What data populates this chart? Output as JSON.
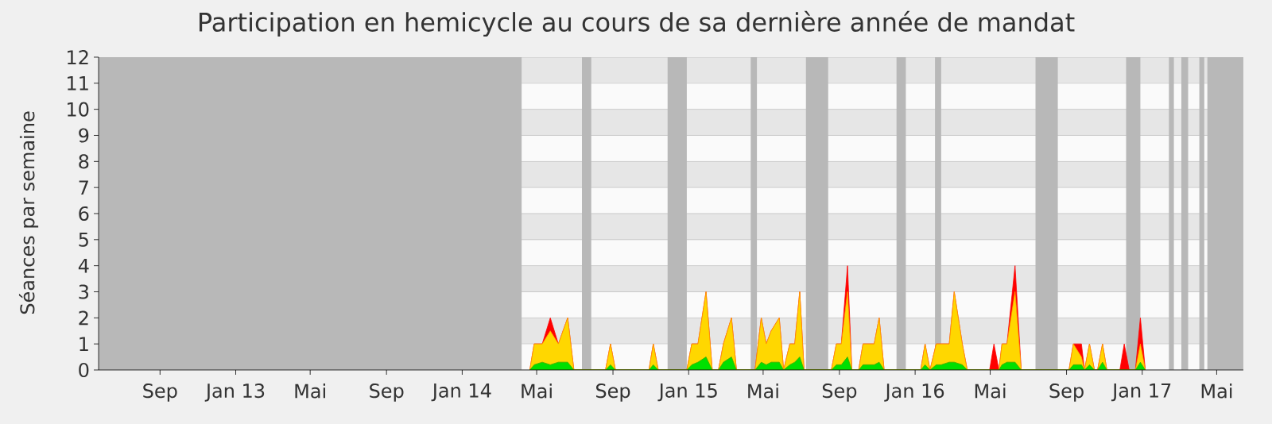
{
  "chart_data": {
    "type": "area",
    "title": "Participation en hemicycle au cours de sa dernière année de mandat",
    "ylabel": "Séances par semaine",
    "x": [
      "2014-04-20",
      "2014-04-27",
      "2014-05-10",
      "2014-05-23",
      "2014-06-05",
      "2014-06-20",
      "2014-06-30",
      "2014-08-20",
      "2014-08-28",
      "2014-09-05",
      "2014-10-29",
      "2014-11-05",
      "2014-11-13",
      "2014-12-29",
      "2015-01-06",
      "2015-01-16",
      "2015-01-29",
      "2015-02-08",
      "2015-02-18",
      "2015-02-26",
      "2015-03-11",
      "2015-03-19",
      "2015-04-18",
      "2015-04-28",
      "2015-05-06",
      "2015-05-14",
      "2015-05-27",
      "2015-06-03",
      "2015-06-13",
      "2015-06-21",
      "2015-06-29",
      "2015-07-06",
      "2015-08-19",
      "2015-08-27",
      "2015-09-04",
      "2015-09-14",
      "2015-09-21",
      "2015-10-02",
      "2015-10-09",
      "2015-10-20",
      "2015-10-27",
      "2015-11-04",
      "2015-11-12",
      "2016-01-10",
      "2016-01-17",
      "2016-01-25",
      "2016-02-04",
      "2016-02-12",
      "2016-02-25",
      "2016-03-04",
      "2016-03-17",
      "2016-03-25",
      "2016-04-30",
      "2016-05-07",
      "2016-05-15",
      "2016-05-20",
      "2016-05-28",
      "2016-06-10",
      "2016-06-20",
      "2016-09-05",
      "2016-09-12",
      "2016-09-25",
      "2016-09-30",
      "2016-10-08",
      "2016-10-16",
      "2016-10-21",
      "2016-10-29",
      "2016-11-05",
      "2016-11-26",
      "2016-12-03",
      "2016-12-11",
      "2016-12-21",
      "2016-12-29",
      "2017-01-06"
    ],
    "series": [
      {
        "color": "#ff0000",
        "values": [
          0,
          1,
          1,
          2,
          1,
          2,
          0,
          0,
          1,
          0,
          0,
          1,
          0,
          0,
          1,
          1,
          3,
          0,
          0,
          1,
          2,
          0,
          0,
          2,
          1,
          1.5,
          2,
          0,
          1,
          1,
          3,
          0,
          0,
          1,
          1,
          4,
          0,
          0,
          1,
          1,
          1,
          2,
          0,
          0,
          1,
          0,
          1,
          1,
          1,
          3,
          1,
          0,
          0,
          1,
          0,
          1,
          1,
          4,
          0,
          0,
          1,
          1,
          0,
          1,
          0,
          0,
          1,
          0,
          0,
          1,
          0,
          0,
          2,
          0
        ]
      },
      {
        "color": "#ffd700",
        "values": [
          0,
          1,
          1,
          1.5,
          1,
          2,
          0,
          0,
          1,
          0,
          0,
          1,
          0,
          0,
          1,
          1,
          3,
          0,
          0,
          1,
          2,
          0,
          0,
          2,
          1,
          1.5,
          2,
          0,
          1,
          1,
          3,
          0,
          0,
          1,
          1,
          3,
          0,
          0,
          1,
          1,
          1,
          2,
          0,
          0,
          1,
          0,
          1,
          1,
          1,
          3,
          1,
          0,
          0,
          0,
          0,
          1,
          1,
          3,
          0,
          0,
          1,
          0.5,
          0,
          1,
          0,
          0,
          1,
          0,
          0,
          0,
          0,
          0,
          1,
          0
        ]
      },
      {
        "color": "#00e000",
        "values": [
          0,
          0.2,
          0.3,
          0.2,
          0.3,
          0.3,
          0,
          0,
          0.2,
          0,
          0,
          0.2,
          0,
          0,
          0.2,
          0.3,
          0.5,
          0,
          0,
          0.3,
          0.5,
          0,
          0,
          0.3,
          0.2,
          0.3,
          0.3,
          0,
          0.2,
          0.3,
          0.5,
          0,
          0,
          0.2,
          0.2,
          0.5,
          0,
          0,
          0.2,
          0.2,
          0.2,
          0.3,
          0,
          0,
          0.2,
          0,
          0.2,
          0.2,
          0.3,
          0.3,
          0.2,
          0,
          0,
          0,
          0,
          0.2,
          0.3,
          0.3,
          0,
          0,
          0.2,
          0.2,
          0,
          0.2,
          0,
          0,
          0.3,
          0,
          0,
          0,
          0,
          0,
          0.3,
          0
        ]
      }
    ],
    "xlim": [
      "2012-05-25",
      "2017-06-13"
    ],
    "ylim": [
      0,
      12
    ],
    "xticks": [
      {
        "value": "2012-09-01",
        "label": "Sep"
      },
      {
        "value": "2013-01-01",
        "label": "Jan 13"
      },
      {
        "value": "2013-05-01",
        "label": "Mai"
      },
      {
        "value": "2013-09-01",
        "label": "Sep"
      },
      {
        "value": "2014-01-01",
        "label": "Jan 14"
      },
      {
        "value": "2014-05-01",
        "label": "Mai"
      },
      {
        "value": "2014-09-01",
        "label": "Sep"
      },
      {
        "value": "2015-01-01",
        "label": "Jan 15"
      },
      {
        "value": "2015-05-01",
        "label": "Mai"
      },
      {
        "value": "2015-09-01",
        "label": "Sep"
      },
      {
        "value": "2016-01-01",
        "label": "Jan 16"
      },
      {
        "value": "2016-05-01",
        "label": "Mai"
      },
      {
        "value": "2016-09-01",
        "label": "Sep"
      },
      {
        "value": "2017-01-01",
        "label": "Jan 17"
      },
      {
        "value": "2017-05-01",
        "label": "Mai"
      }
    ],
    "yticks": [
      0,
      1,
      2,
      3,
      4,
      5,
      6,
      7,
      8,
      9,
      10,
      11,
      12
    ],
    "grid": "y",
    "bands": [
      {
        "axis": "x",
        "from": "2012-05-25",
        "to": "2014-04-07",
        "color": "#b8b8b8"
      },
      {
        "axis": "x",
        "from": "2014-07-13",
        "to": "2014-07-28",
        "color": "#b8b8b8"
      },
      {
        "axis": "x",
        "from": "2014-11-28",
        "to": "2014-12-29",
        "color": "#b8b8b8"
      },
      {
        "axis": "x",
        "from": "2015-04-11",
        "to": "2015-04-21",
        "color": "#b8b8b8"
      },
      {
        "axis": "x",
        "from": "2015-07-09",
        "to": "2015-08-14",
        "color": "#b8b8b8"
      },
      {
        "axis": "x",
        "from": "2015-12-02",
        "to": "2015-12-17",
        "color": "#b8b8b8"
      },
      {
        "axis": "x",
        "from": "2016-02-02",
        "to": "2016-02-12",
        "color": "#b8b8b8"
      },
      {
        "axis": "x",
        "from": "2016-07-13",
        "to": "2016-08-18",
        "color": "#b8b8b8"
      },
      {
        "axis": "x",
        "from": "2016-12-06",
        "to": "2016-12-29",
        "color": "#b8b8b8"
      },
      {
        "axis": "x",
        "from": "2017-02-13",
        "to": "2017-02-21",
        "color": "#b8b8b8"
      },
      {
        "axis": "x",
        "from": "2017-03-05",
        "to": "2017-03-16",
        "color": "#b8b8b8"
      },
      {
        "axis": "x",
        "from": "2017-04-03",
        "to": "2017-04-11",
        "color": "#b8b8b8"
      },
      {
        "axis": "x",
        "from": "2017-04-16",
        "to": "2017-06-13",
        "color": "#b8b8b8"
      }
    ]
  }
}
